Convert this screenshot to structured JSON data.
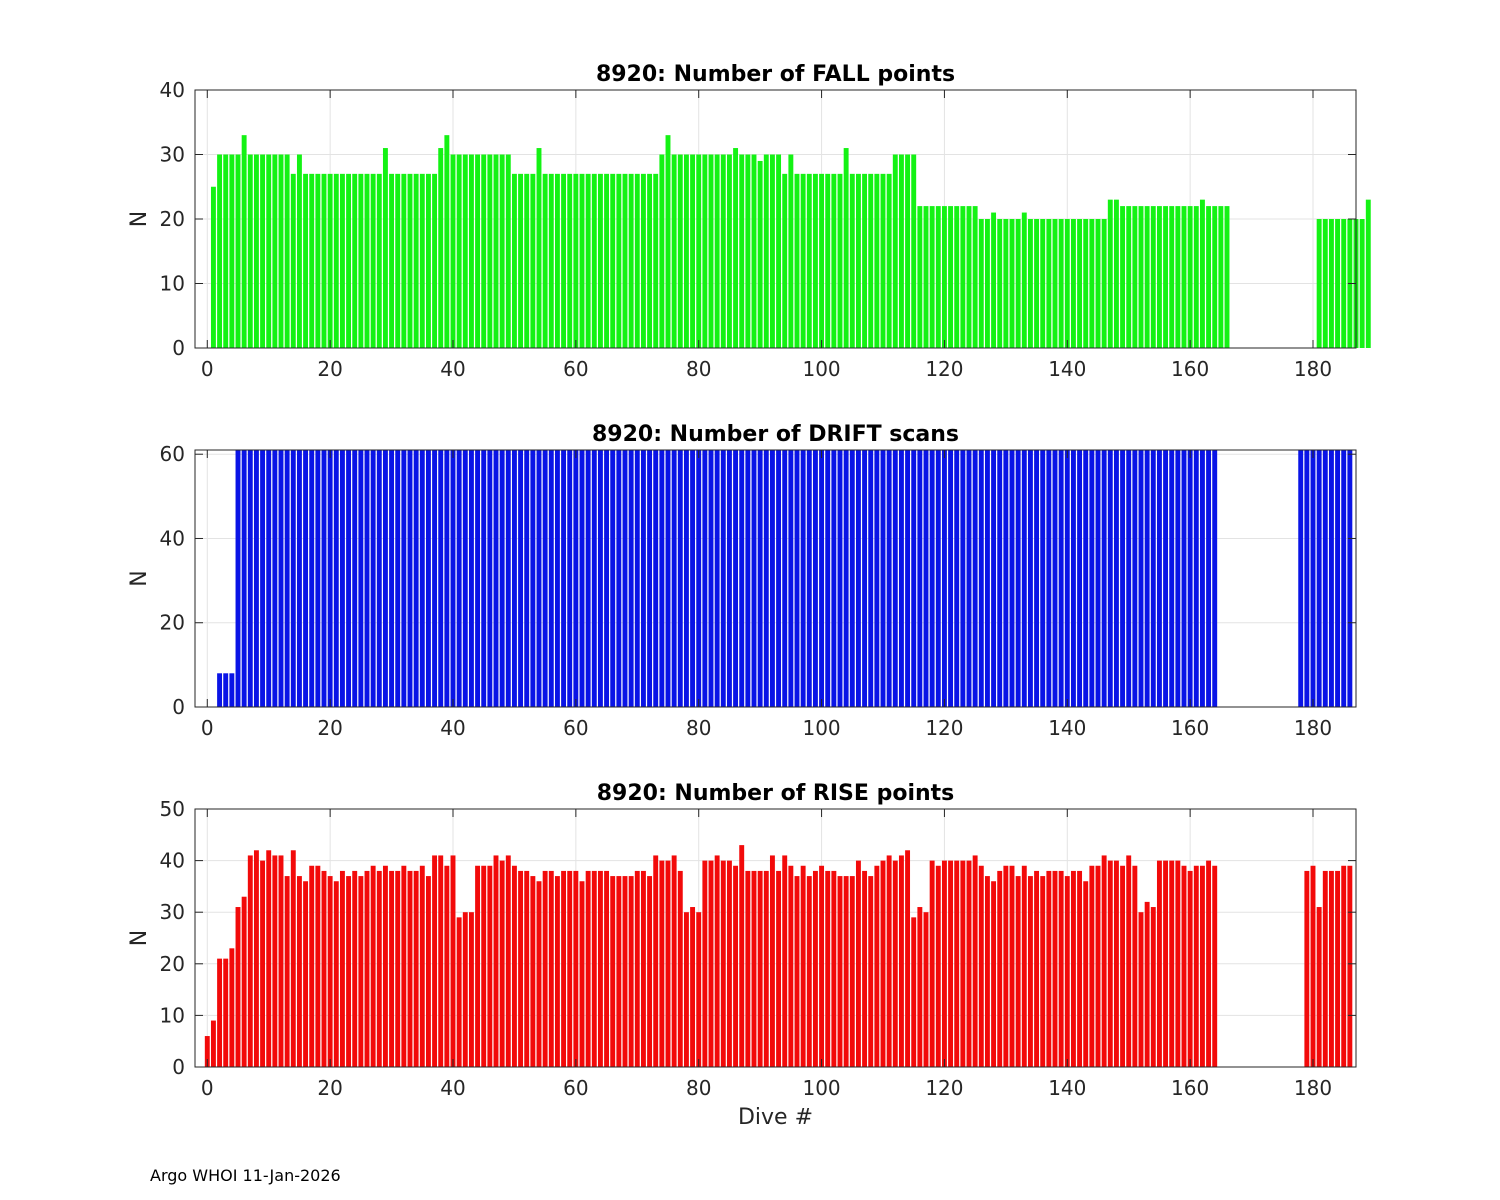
{
  "footer": "Argo WHOI 11-Jan-2026",
  "colors": {
    "fall": "#14f214",
    "drift": "#0a14e6",
    "rise": "#f20a0a",
    "grid": "#e3e3e3",
    "axis": "#262626"
  },
  "chart_data": [
    {
      "type": "bar",
      "title": "8920: Number of FALL points",
      "xlabel": "",
      "ylabel": "N",
      "xlim": [
        -2,
        187
      ],
      "ylim": [
        0,
        40
      ],
      "xticks": [
        0,
        20,
        40,
        60,
        80,
        100,
        120,
        140,
        160,
        180
      ],
      "yticks": [
        0,
        10,
        20,
        30,
        40
      ],
      "grid": true,
      "color": "#14f214",
      "x_start": 1,
      "values": [
        25,
        30,
        30,
        30,
        30,
        33,
        30,
        30,
        30,
        30,
        30,
        30,
        30,
        27,
        30,
        27,
        27,
        27,
        27,
        27,
        27,
        27,
        27,
        27,
        27,
        27,
        27,
        27,
        31,
        27,
        27,
        27,
        27,
        27,
        27,
        27,
        27,
        31,
        33,
        30,
        30,
        30,
        30,
        30,
        30,
        30,
        30,
        30,
        30,
        27,
        27,
        27,
        27,
        31,
        27,
        27,
        27,
        27,
        27,
        27,
        27,
        27,
        27,
        27,
        27,
        27,
        27,
        27,
        27,
        27,
        27,
        27,
        27,
        30,
        33,
        30,
        30,
        30,
        30,
        30,
        30,
        30,
        30,
        30,
        30,
        31,
        30,
        30,
        30,
        29,
        30,
        30,
        30,
        27,
        30,
        27,
        27,
        27,
        27,
        27,
        27,
        27,
        27,
        31,
        27,
        27,
        27,
        27,
        27,
        27,
        27,
        30,
        30,
        30,
        30,
        22,
        22,
        22,
        22,
        22,
        22,
        22,
        22,
        22,
        22,
        20,
        20,
        21,
        20,
        20,
        20,
        20,
        21,
        20,
        20,
        20,
        20,
        20,
        20,
        20,
        20,
        20,
        20,
        20,
        20,
        20,
        23,
        23,
        22,
        22,
        22,
        22,
        22,
        22,
        22,
        22,
        22,
        22,
        22,
        22,
        22,
        23,
        22,
        22,
        22,
        22,
        null,
        null,
        null,
        null,
        null,
        null,
        null,
        null,
        null,
        null,
        null,
        null,
        null,
        null,
        20,
        20,
        20,
        20,
        20,
        20,
        20,
        20,
        23
      ]
    },
    {
      "type": "bar",
      "title": "8920: Number of DRIFT scans",
      "xlabel": "",
      "ylabel": "N",
      "xlim": [
        -2,
        187
      ],
      "ylim": [
        0,
        61
      ],
      "xticks": [
        0,
        20,
        40,
        60,
        80,
        100,
        120,
        140,
        160,
        180
      ],
      "yticks": [
        0,
        20,
        40,
        60
      ],
      "grid": true,
      "color": "#0a14e6",
      "x_start": 1,
      "values": [
        null,
        8,
        8,
        8,
        61,
        61,
        61,
        61,
        61,
        61,
        61,
        61,
        61,
        61,
        61,
        61,
        61,
        61,
        61,
        61,
        61,
        61,
        61,
        61,
        61,
        61,
        61,
        61,
        61,
        61,
        61,
        61,
        61,
        61,
        61,
        61,
        61,
        61,
        61,
        61,
        61,
        61,
        61,
        61,
        61,
        61,
        61,
        61,
        61,
        61,
        61,
        61,
        61,
        61,
        61,
        61,
        61,
        61,
        61,
        61,
        61,
        61,
        61,
        61,
        61,
        61,
        61,
        61,
        61,
        61,
        61,
        61,
        61,
        61,
        61,
        61,
        61,
        61,
        61,
        61,
        61,
        61,
        61,
        61,
        61,
        61,
        61,
        61,
        61,
        61,
        61,
        61,
        61,
        61,
        61,
        61,
        61,
        61,
        61,
        61,
        61,
        61,
        61,
        61,
        61,
        61,
        61,
        61,
        61,
        61,
        61,
        61,
        61,
        61,
        61,
        61,
        61,
        61,
        61,
        61,
        61,
        61,
        61,
        61,
        61,
        61,
        61,
        61,
        61,
        61,
        61,
        61,
        61,
        61,
        61,
        61,
        61,
        61,
        61,
        61,
        61,
        61,
        61,
        61,
        61,
        61,
        61,
        61,
        61,
        61,
        61,
        61,
        61,
        61,
        61,
        61,
        61,
        61,
        61,
        61,
        61,
        61,
        61,
        61,
        null,
        null,
        null,
        null,
        null,
        null,
        null,
        null,
        null,
        null,
        null,
        null,
        null,
        61,
        61,
        61,
        61,
        61,
        61,
        61,
        61,
        61
      ]
    },
    {
      "type": "bar",
      "title": "8920: Number of RISE points",
      "xlabel": "Dive #",
      "ylabel": "N",
      "xlim": [
        -2,
        187
      ],
      "ylim": [
        0,
        50
      ],
      "xticks": [
        0,
        20,
        40,
        60,
        80,
        100,
        120,
        140,
        160,
        180
      ],
      "yticks": [
        0,
        10,
        20,
        30,
        40,
        50
      ],
      "grid": true,
      "color": "#f20a0a",
      "x_start": 0,
      "values": [
        6,
        9,
        21,
        21,
        23,
        31,
        33,
        41,
        42,
        40,
        42,
        41,
        41,
        37,
        42,
        37,
        36,
        39,
        39,
        38,
        37,
        36,
        38,
        37,
        38,
        37,
        38,
        39,
        38,
        39,
        38,
        38,
        39,
        38,
        38,
        39,
        37,
        41,
        41,
        39,
        41,
        29,
        30,
        30,
        39,
        39,
        39,
        41,
        40,
        41,
        39,
        38,
        38,
        37,
        36,
        38,
        38,
        37,
        38,
        38,
        38,
        36,
        38,
        38,
        38,
        38,
        37,
        37,
        37,
        37,
        38,
        38,
        37,
        41,
        40,
        40,
        41,
        38,
        30,
        31,
        30,
        40,
        40,
        41,
        40,
        40,
        39,
        43,
        38,
        38,
        38,
        38,
        41,
        38,
        41,
        39,
        37,
        39,
        37,
        38,
        39,
        38,
        38,
        37,
        37,
        37,
        40,
        38,
        37,
        39,
        40,
        41,
        40,
        41,
        42,
        29,
        31,
        30,
        40,
        39,
        40,
        40,
        40,
        40,
        40,
        41,
        39,
        37,
        36,
        38,
        39,
        39,
        37,
        39,
        37,
        38,
        37,
        38,
        38,
        38,
        37,
        38,
        38,
        36,
        39,
        39,
        41,
        40,
        40,
        39,
        41,
        39,
        30,
        32,
        31,
        40,
        40,
        40,
        40,
        39,
        38,
        39,
        39,
        40,
        39,
        null,
        null,
        null,
        null,
        null,
        null,
        null,
        null,
        null,
        null,
        null,
        null,
        null,
        null,
        38,
        39,
        31,
        38,
        38,
        38,
        39,
        39
      ]
    }
  ]
}
